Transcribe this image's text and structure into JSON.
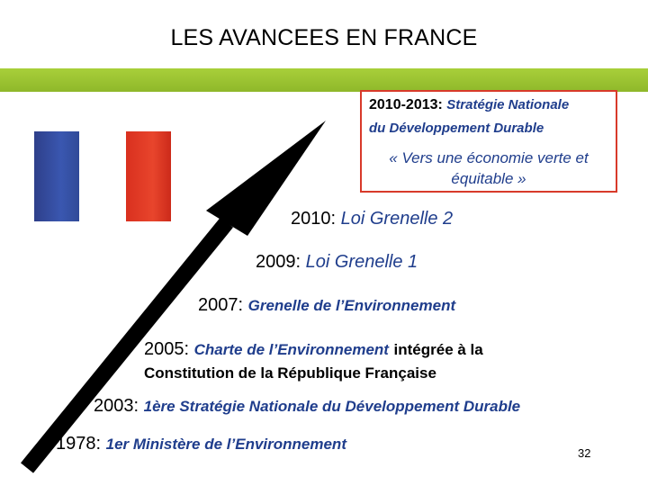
{
  "title": "LES AVANCEES EN FRANCE",
  "colors": {
    "green_bar": "#99c231",
    "flag_blue": "#3550a5",
    "flag_red": "#e03c25",
    "box_border": "#d83a2a",
    "text_blue": "#1f3d8c"
  },
  "box": {
    "year": "2010-2013:",
    "line1": "Stratégie Nationale",
    "line2": "du Développement Durable",
    "quote_line1": "« Vers une économie verte et",
    "quote_line2": "équitable »"
  },
  "milestones": [
    {
      "year": "2010:",
      "text": "Loi Grenelle 2"
    },
    {
      "year": "2009:",
      "text": "Loi Grenelle 1"
    },
    {
      "year": "2007:",
      "text": "Grenelle de l’Environnement"
    },
    {
      "year": "2005:",
      "text": "Charte de l’Environnement",
      "suffix": "intégrée à la",
      "line2": "Constitution de la République Française"
    },
    {
      "year": "2003:",
      "text": "1ère Stratégie Nationale du Développement Durable"
    },
    {
      "year": "1978:",
      "text": "1er Ministère de l’Environnement"
    }
  ],
  "page_number": "32"
}
